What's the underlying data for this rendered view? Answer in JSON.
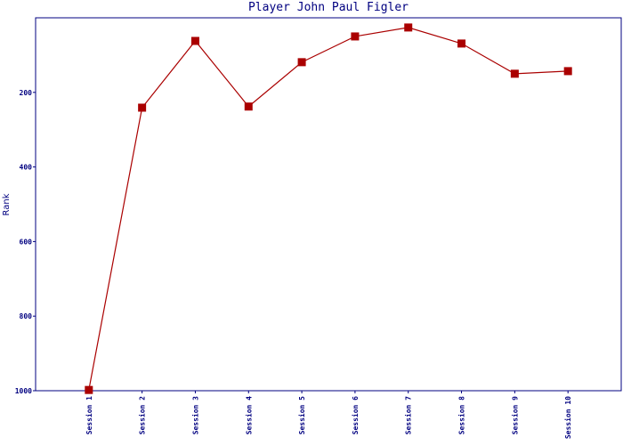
{
  "chart_data": {
    "type": "line",
    "title": "Player John Paul Figler",
    "y_label": "Rank",
    "categories": [
      "Session 1",
      "Session 2",
      "Session 3",
      "Session 4",
      "Session 5",
      "Session 6",
      "Session 7",
      "Session 8",
      "Session 9",
      "Session 10"
    ],
    "series": [
      {
        "name": "Rank",
        "color": "#aa0000",
        "values": [
          998,
          241,
          62,
          238,
          119,
          50,
          26,
          69,
          150,
          143
        ]
      }
    ],
    "ylim": [
      1000,
      0
    ],
    "yticks": [
      200,
      400,
      600,
      800,
      1000
    ],
    "grid": false
  }
}
